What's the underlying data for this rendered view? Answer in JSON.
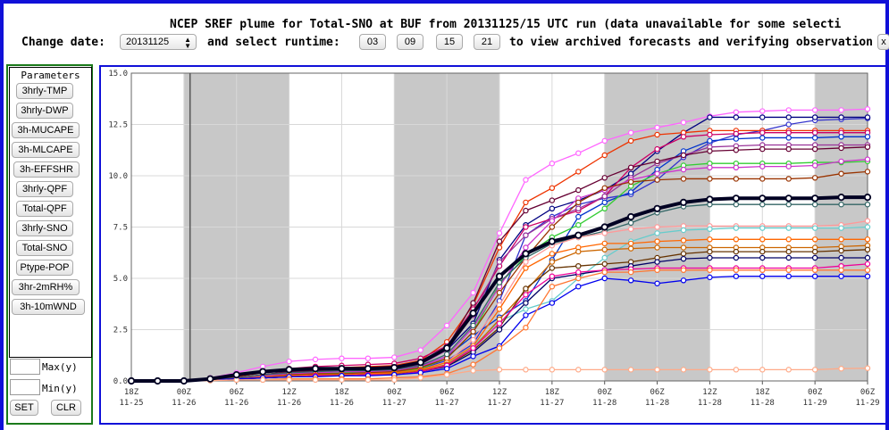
{
  "header": {
    "title": "NCEP SREF plume for Total-SNO at BUF from 20131125/15 UTC run (data unavailable for some selecti",
    "change_date_label": "Change date:",
    "date_value": "20131125",
    "select_runtime_label": "and select runtime:",
    "runtimes": [
      "03",
      "09",
      "15",
      "21"
    ],
    "suffix_text": "to view archived forecasts and verifying observation",
    "overflow_button": "x"
  },
  "parameters": {
    "title": "Parameters",
    "buttons": [
      "3hrly-TMP",
      "3hrly-DWP",
      "3h-MUCAPE",
      "3h-MLCAPE",
      "3h-EFFSHR",
      "3hrly-QPF",
      "Total-QPF",
      "3hrly-SNO",
      "Total-SNO",
      "Ptype-POP",
      "3hr-2mRH%",
      "3h-10mWND"
    ],
    "max_label": "Max(y)",
    "min_label": "Min(y)",
    "max_value": "",
    "min_value": "",
    "set_label": "SET",
    "clr_label": "CLR"
  },
  "colors": {
    "frame": "#1010d8",
    "panel_border": "#1a7a1a",
    "night_shading": "#c8c8c8",
    "mean_line": "#000022"
  },
  "chart_data": {
    "type": "line",
    "y_ticks": [
      "0.0",
      "2.5",
      "5.0",
      "7.5",
      "10.0",
      "12.5",
      "15.0"
    ],
    "ylim": [
      0,
      15
    ],
    "x_ticks": [
      {
        "top": "18Z",
        "bottom": "11-25"
      },
      {
        "top": "00Z",
        "bottom": "11-26"
      },
      {
        "top": "06Z",
        "bottom": "11-26"
      },
      {
        "top": "12Z",
        "bottom": "11-26"
      },
      {
        "top": "18Z",
        "bottom": "11-26"
      },
      {
        "top": "00Z",
        "bottom": "11-27"
      },
      {
        "top": "06Z",
        "bottom": "11-27"
      },
      {
        "top": "12Z",
        "bottom": "11-27"
      },
      {
        "top": "18Z",
        "bottom": "11-27"
      },
      {
        "top": "00Z",
        "bottom": "11-28"
      },
      {
        "top": "06Z",
        "bottom": "11-28"
      },
      {
        "top": "12Z",
        "bottom": "11-28"
      },
      {
        "top": "18Z",
        "bottom": "11-28"
      },
      {
        "top": "00Z",
        "bottom": "11-29"
      },
      {
        "top": "06Z",
        "bottom": "11-29"
      }
    ],
    "x_hours_range": [
      0,
      84
    ],
    "x_hours": [
      0,
      3,
      6,
      9,
      12,
      15,
      18,
      21,
      24,
      27,
      30,
      33,
      36,
      39,
      42,
      45,
      48,
      51,
      54,
      57,
      60,
      63,
      66,
      69,
      72,
      75,
      78,
      81,
      84
    ],
    "night_shading_hours": [
      [
        6,
        18
      ],
      [
        30,
        42
      ],
      [
        54,
        66
      ],
      [
        78,
        84
      ]
    ],
    "run_start_hour": 6.7,
    "grid": true,
    "series": [
      {
        "color": "#ff66ff",
        "values": [
          0,
          0,
          0,
          0.15,
          0.4,
          0.7,
          0.95,
          1.05,
          1.1,
          1.1,
          1.15,
          1.5,
          2.7,
          4.3,
          7.2,
          9.8,
          10.6,
          11.1,
          11.7,
          12.1,
          12.35,
          12.6,
          12.9,
          13.1,
          13.15,
          13.2,
          13.2,
          13.2,
          13.25
        ]
      },
      {
        "color": "#3333cc",
        "values": [
          0,
          0,
          0,
          0.05,
          0.1,
          0.2,
          0.3,
          0.35,
          0.4,
          0.4,
          0.45,
          0.6,
          1.0,
          1.8,
          3.9,
          7.1,
          8.0,
          8.6,
          8.9,
          9.1,
          9.8,
          10.9,
          11.6,
          12.0,
          12.2,
          12.5,
          12.7,
          12.75,
          12.8
        ]
      },
      {
        "color": "#000080",
        "values": [
          0,
          0,
          0,
          0.05,
          0.15,
          0.3,
          0.45,
          0.5,
          0.55,
          0.55,
          0.6,
          0.9,
          1.5,
          2.8,
          5.9,
          7.6,
          8.4,
          8.8,
          9.3,
          10.1,
          11.2,
          12.1,
          12.85,
          12.85,
          12.85,
          12.85,
          12.85,
          12.85,
          12.85
        ]
      },
      {
        "color": "#ee3300",
        "values": [
          0,
          0,
          0,
          0.1,
          0.2,
          0.4,
          0.55,
          0.6,
          0.65,
          0.7,
          0.75,
          1.0,
          1.9,
          3.7,
          6.5,
          8.7,
          9.4,
          10.2,
          11.0,
          11.7,
          12.0,
          12.1,
          12.2,
          12.2,
          12.2,
          12.2,
          12.2,
          12.2,
          12.2
        ]
      },
      {
        "color": "#cc0066",
        "values": [
          0,
          0,
          0,
          0.1,
          0.25,
          0.45,
          0.6,
          0.7,
          0.75,
          0.8,
          0.85,
          1.1,
          1.7,
          3.5,
          5.6,
          7.5,
          7.9,
          8.3,
          9.0,
          10.4,
          11.3,
          11.9,
          12.0,
          12.05,
          12.1,
          12.1,
          12.1,
          12.1,
          12.1
        ]
      },
      {
        "color": "#0033cc",
        "values": [
          0,
          0,
          0,
          0.05,
          0.1,
          0.2,
          0.3,
          0.35,
          0.4,
          0.45,
          0.5,
          0.7,
          1.2,
          2.2,
          3.1,
          3.9,
          5.9,
          8.0,
          8.7,
          9.2,
          10.3,
          11.2,
          11.7,
          11.8,
          11.85,
          11.85,
          11.85,
          11.9,
          11.9
        ]
      },
      {
        "color": "#993399",
        "values": [
          0,
          0,
          0,
          0.05,
          0.15,
          0.3,
          0.4,
          0.45,
          0.5,
          0.5,
          0.55,
          0.8,
          1.5,
          3.2,
          5.8,
          7.1,
          7.9,
          8.4,
          9.0,
          9.9,
          10.6,
          11.0,
          11.4,
          11.45,
          11.5,
          11.5,
          11.5,
          11.5,
          11.5
        ]
      },
      {
        "color": "#660033",
        "values": [
          0,
          0,
          0,
          0.05,
          0.15,
          0.3,
          0.45,
          0.5,
          0.55,
          0.55,
          0.6,
          0.85,
          1.6,
          3.8,
          6.8,
          8.3,
          8.8,
          9.3,
          9.9,
          10.4,
          10.7,
          11.0,
          11.2,
          11.25,
          11.3,
          11.3,
          11.3,
          11.35,
          11.4
        ]
      },
      {
        "color": "#33cc33",
        "values": [
          0,
          0,
          0,
          0.05,
          0.1,
          0.2,
          0.3,
          0.35,
          0.4,
          0.4,
          0.45,
          0.6,
          1.1,
          2.4,
          4.7,
          6.1,
          7.0,
          7.6,
          8.4,
          9.5,
          10.1,
          10.5,
          10.6,
          10.6,
          10.6,
          10.6,
          10.65,
          10.65,
          10.7
        ]
      },
      {
        "color": "#cc33cc",
        "values": [
          0,
          0,
          0,
          0.05,
          0.1,
          0.25,
          0.35,
          0.4,
          0.45,
          0.45,
          0.5,
          0.7,
          1.2,
          2.6,
          4.6,
          6.5,
          7.8,
          8.9,
          9.3,
          9.8,
          10.1,
          10.3,
          10.4,
          10.4,
          10.45,
          10.45,
          10.5,
          10.7,
          10.8
        ]
      },
      {
        "color": "#993300",
        "values": [
          0,
          0,
          0,
          0.05,
          0.1,
          0.2,
          0.3,
          0.35,
          0.35,
          0.4,
          0.45,
          0.65,
          1.1,
          2.4,
          4.3,
          6.0,
          7.5,
          8.7,
          9.4,
          9.7,
          9.8,
          9.85,
          9.85,
          9.85,
          9.85,
          9.85,
          9.9,
          10.1,
          10.2
        ]
      },
      {
        "color": "#000022",
        "bold": true,
        "values": [
          0,
          0,
          0,
          0.1,
          0.3,
          0.45,
          0.55,
          0.6,
          0.6,
          0.6,
          0.65,
          0.9,
          1.6,
          3.3,
          5.1,
          6.2,
          6.8,
          7.1,
          7.5,
          8.0,
          8.4,
          8.7,
          8.85,
          8.9,
          8.9,
          8.9,
          8.9,
          8.95,
          8.95
        ]
      },
      {
        "color": "#336666",
        "values": [
          0,
          0,
          0,
          0.05,
          0.15,
          0.3,
          0.4,
          0.45,
          0.5,
          0.5,
          0.55,
          0.75,
          1.3,
          2.7,
          4.8,
          6.0,
          6.7,
          7.0,
          7.3,
          7.7,
          8.2,
          8.5,
          8.6,
          8.6,
          8.6,
          8.6,
          8.6,
          8.6,
          8.6
        ]
      },
      {
        "color": "#ff9999",
        "values": [
          0,
          0,
          0,
          0.05,
          0.1,
          0.15,
          0.2,
          0.25,
          0.3,
          0.3,
          0.35,
          0.5,
          0.9,
          2.0,
          3.7,
          5.8,
          6.6,
          7.0,
          7.2,
          7.4,
          7.5,
          7.55,
          7.55,
          7.55,
          7.55,
          7.55,
          7.55,
          7.6,
          7.8
        ]
      },
      {
        "color": "#66cccc",
        "values": [
          0,
          0,
          0,
          0.05,
          0.1,
          0.15,
          0.2,
          0.25,
          0.25,
          0.3,
          0.3,
          0.45,
          0.8,
          1.7,
          2.9,
          3.5,
          3.9,
          5.0,
          6.0,
          6.8,
          7.2,
          7.35,
          7.4,
          7.45,
          7.45,
          7.45,
          7.45,
          7.45,
          7.5
        ]
      },
      {
        "color": "#ff6600",
        "values": [
          0,
          0,
          0,
          0.05,
          0.1,
          0.2,
          0.25,
          0.3,
          0.3,
          0.35,
          0.4,
          0.55,
          0.9,
          1.7,
          3.5,
          5.5,
          6.2,
          6.5,
          6.7,
          6.7,
          6.8,
          6.85,
          6.9,
          6.9,
          6.9,
          6.9,
          6.9,
          6.9,
          6.9
        ]
      },
      {
        "color": "#cc6600",
        "values": [
          0,
          0,
          0,
          0.05,
          0.1,
          0.15,
          0.2,
          0.25,
          0.25,
          0.3,
          0.35,
          0.5,
          0.8,
          1.6,
          3.0,
          4.4,
          5.8,
          6.3,
          6.4,
          6.45,
          6.5,
          6.5,
          6.5,
          6.5,
          6.5,
          6.5,
          6.5,
          6.55,
          6.6
        ]
      },
      {
        "color": "#663300",
        "values": [
          0,
          0,
          0,
          0.05,
          0.1,
          0.15,
          0.2,
          0.25,
          0.25,
          0.3,
          0.3,
          0.45,
          0.75,
          1.5,
          2.6,
          4.5,
          5.5,
          5.6,
          5.7,
          5.8,
          6.0,
          6.2,
          6.3,
          6.3,
          6.3,
          6.3,
          6.3,
          6.35,
          6.4
        ]
      },
      {
        "color": "#000066",
        "values": [
          0,
          0,
          0,
          0.05,
          0.1,
          0.15,
          0.2,
          0.25,
          0.25,
          0.3,
          0.3,
          0.45,
          0.7,
          1.4,
          2.5,
          3.8,
          5.0,
          5.2,
          5.4,
          5.6,
          5.8,
          5.95,
          6.0,
          6.0,
          6.0,
          6.0,
          6.0,
          6.0,
          6.0
        ]
      },
      {
        "color": "#ee0099",
        "values": [
          0,
          0,
          0,
          0.05,
          0.1,
          0.15,
          0.2,
          0.25,
          0.25,
          0.3,
          0.3,
          0.45,
          0.75,
          1.6,
          2.8,
          4.2,
          5.1,
          5.3,
          5.4,
          5.45,
          5.5,
          5.5,
          5.5,
          5.5,
          5.5,
          5.5,
          5.5,
          5.6,
          5.7
        ]
      },
      {
        "color": "#0000ee",
        "values": [
          0,
          0,
          0,
          0.05,
          0.1,
          0.15,
          0.2,
          0.2,
          0.25,
          0.25,
          0.3,
          0.4,
          0.6,
          1.2,
          1.7,
          3.2,
          3.8,
          4.6,
          5.0,
          4.9,
          4.75,
          4.9,
          5.05,
          5.1,
          5.1,
          5.1,
          5.1,
          5.1,
          5.1
        ]
      },
      {
        "color": "#ff7733",
        "values": [
          0,
          0,
          0,
          0.02,
          0.05,
          0.05,
          0.1,
          0.1,
          0.1,
          0.1,
          0.15,
          0.2,
          0.35,
          0.8,
          1.6,
          2.6,
          4.6,
          5.0,
          5.3,
          5.3,
          5.4,
          5.4,
          5.4,
          5.4,
          5.4,
          5.4,
          5.4,
          5.4,
          5.4
        ]
      },
      {
        "color": "#ffaa88",
        "values": [
          0,
          0,
          0,
          0.02,
          0.05,
          0.05,
          0.05,
          0.05,
          0.05,
          0.05,
          0.05,
          0.15,
          0.3,
          0.5,
          0.55,
          0.55,
          0.55,
          0.55,
          0.55,
          0.55,
          0.55,
          0.55,
          0.55,
          0.55,
          0.55,
          0.55,
          0.55,
          0.6,
          0.62
        ]
      }
    ]
  }
}
